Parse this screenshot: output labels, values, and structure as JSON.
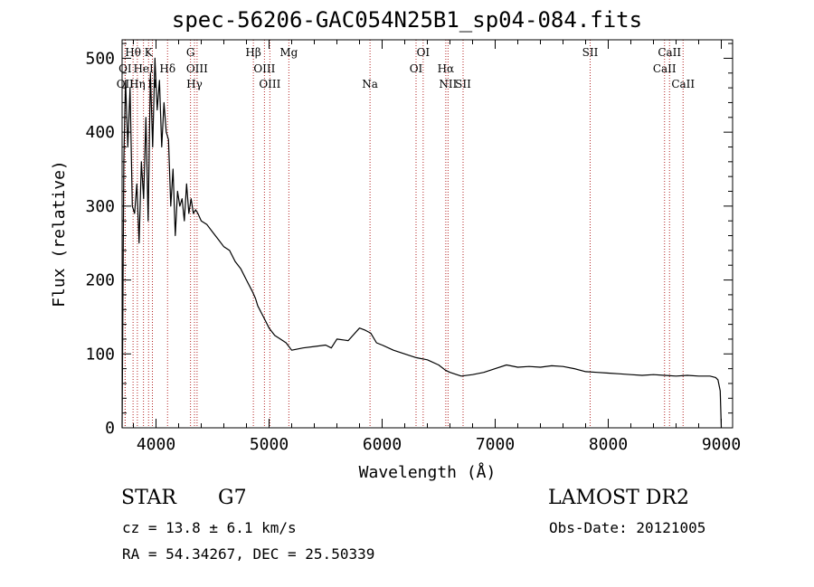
{
  "title": "spec-56206-GAC054N25B1_sp04-084.fits",
  "info": {
    "object_class": "STAR",
    "subclass": "G7",
    "redshift_line": "cz = 13.8 ± 6.1 km/s",
    "coords_line": "RA =  54.34267, DEC =  25.50339",
    "survey": "LAMOST DR2",
    "obs_date": "Obs-Date: 20121005"
  },
  "chart_data": {
    "type": "line",
    "xlabel": "Wavelength (Å)",
    "ylabel": "Flux (relative)",
    "xlim": [
      3700,
      9100
    ],
    "ylim": [
      0,
      525
    ],
    "x_ticks": [
      4000,
      5000,
      6000,
      7000,
      8000,
      9000
    ],
    "y_ticks": [
      0,
      100,
      200,
      300,
      400,
      500
    ],
    "grid": false,
    "line_color": "#000000",
    "marker_color": "#b22222",
    "series": [
      {
        "x": [
          3700,
          3715,
          3730,
          3750,
          3770,
          3790,
          3810,
          3830,
          3850,
          3870,
          3890,
          3910,
          3930,
          3950,
          3970,
          3990,
          4010,
          4030,
          4050,
          4070,
          4090,
          4110,
          4130,
          4150,
          4170,
          4190,
          4210,
          4230,
          4250,
          4270,
          4290,
          4310,
          4330,
          4350,
          4370,
          4400,
          4450,
          4500,
          4550,
          4600,
          4650,
          4700,
          4750,
          4800,
          4850,
          4880,
          4900,
          4950,
          5000,
          5050,
          5100,
          5150,
          5200,
          5300,
          5400,
          5500,
          5550,
          5600,
          5700,
          5800,
          5850,
          5900,
          5950,
          6000,
          6100,
          6200,
          6300,
          6400,
          6500,
          6560,
          6600,
          6700,
          6800,
          6900,
          7000,
          7100,
          7200,
          7300,
          7400,
          7500,
          7600,
          7700,
          7800,
          7900,
          8000,
          8100,
          8200,
          8300,
          8400,
          8500,
          8600,
          8700,
          8800,
          8900,
          8950,
          8970,
          8990,
          9000
        ],
        "y": [
          0,
          360,
          470,
          380,
          460,
          300,
          290,
          330,
          250,
          360,
          310,
          420,
          280,
          480,
          380,
          500,
          430,
          470,
          380,
          440,
          400,
          390,
          300,
          350,
          260,
          320,
          300,
          310,
          280,
          330,
          290,
          310,
          290,
          295,
          290,
          280,
          275,
          265,
          255,
          245,
          240,
          225,
          215,
          200,
          185,
          175,
          165,
          150,
          135,
          125,
          120,
          115,
          105,
          108,
          110,
          112,
          108,
          120,
          118,
          135,
          132,
          128,
          115,
          112,
          105,
          100,
          95,
          92,
          85,
          78,
          75,
          70,
          72,
          75,
          80,
          85,
          82,
          83,
          82,
          84,
          83,
          80,
          76,
          75,
          74,
          73,
          72,
          71,
          72,
          71,
          70,
          71,
          70,
          70,
          68,
          65,
          50,
          0
        ]
      }
    ],
    "lines": [
      {
        "name": "Hθ",
        "x": 3797,
        "row": 0
      },
      {
        "name": "K",
        "x": 3934,
        "row": 0
      },
      {
        "name": "G",
        "x": 4305,
        "row": 0
      },
      {
        "name": "Hβ",
        "x": 4861,
        "row": 0
      },
      {
        "name": "Mg",
        "x": 5175,
        "row": 0
      },
      {
        "name": "OI",
        "x": 6363,
        "row": 0
      },
      {
        "name": "SII",
        "x": 7840,
        "row": 0
      },
      {
        "name": "CaII",
        "x": 8542,
        "row": 0
      },
      {
        "name": "OI",
        "x": 3727,
        "row": 1
      },
      {
        "name": "HeI",
        "x": 3889,
        "row": 1
      },
      {
        "name": "Hδ",
        "x": 4102,
        "row": 1
      },
      {
        "name": "OIII",
        "x": 4363,
        "row": 1
      },
      {
        "name": "OIII",
        "x": 4959,
        "row": 1
      },
      {
        "name": "OI",
        "x": 6300,
        "row": 1
      },
      {
        "name": "Hα",
        "x": 6563,
        "row": 1
      },
      {
        "name": "CaII",
        "x": 8498,
        "row": 1
      },
      {
        "name": "OII",
        "x": 3727,
        "row": 2
      },
      {
        "name": "Hη",
        "x": 3835,
        "row": 2
      },
      {
        "name": "H",
        "x": 3968,
        "row": 2
      },
      {
        "name": "Hγ",
        "x": 4340,
        "row": 2
      },
      {
        "name": "OIII",
        "x": 5007,
        "row": 2
      },
      {
        "name": "Na",
        "x": 5893,
        "row": 2
      },
      {
        "name": "NII",
        "x": 6583,
        "row": 2
      },
      {
        "name": "SII",
        "x": 6716,
        "row": 2
      },
      {
        "name": "CaII",
        "x": 8662,
        "row": 2
      }
    ]
  }
}
